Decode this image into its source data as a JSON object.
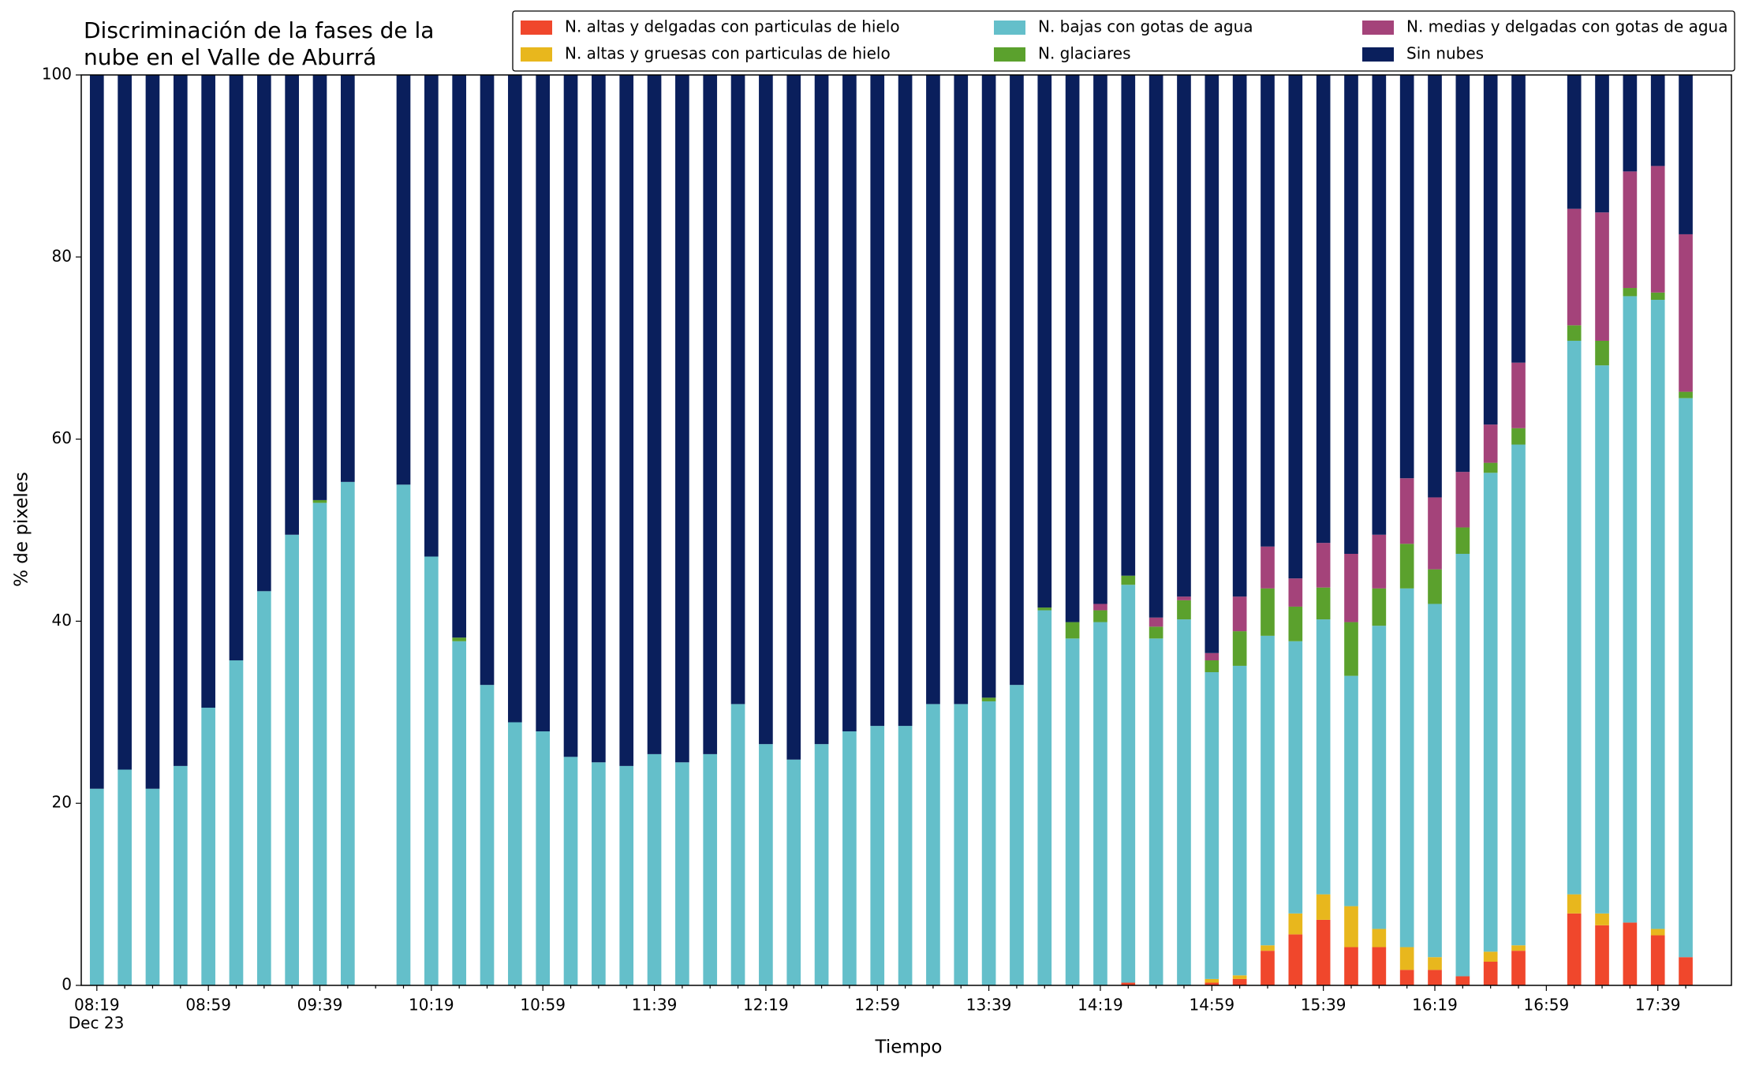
{
  "chart_data": {
    "type": "stacked_bar",
    "title": [
      "Discriminación de la fases de la",
      "nube en el Valle de Aburrá"
    ],
    "xlabel": "Tiempo",
    "ylabel": "% de pixeles",
    "date_label": "Dec 23",
    "categories": [
      "08:19",
      null,
      null,
      null,
      "08:59",
      null,
      null,
      null,
      "09:39",
      null,
      null,
      null,
      "10:19",
      null,
      null,
      null,
      "10:59",
      null,
      null,
      null,
      "11:39",
      null,
      null,
      null,
      "12:19",
      null,
      null,
      null,
      "12:59",
      null,
      null,
      null,
      "13:39",
      null,
      null,
      null,
      "14:19",
      null,
      null,
      null,
      "14:59",
      null,
      null,
      null,
      "15:39",
      null,
      null,
      null,
      "16:19",
      null,
      null,
      null,
      "16:59",
      null,
      null,
      null,
      "17:39",
      null
    ],
    "ylim": [
      0,
      100
    ],
    "yticks": [
      0,
      20,
      40,
      60,
      80,
      100
    ],
    "legend": "upper right",
    "series": [
      {
        "name": "N. altas y delgadas con particulas de hielo",
        "color": "#f0472c",
        "values": [
          0,
          0,
          0,
          0,
          0,
          0,
          0,
          0,
          0,
          0,
          null,
          0,
          0,
          0,
          0,
          0,
          0,
          0,
          0,
          0,
          0,
          0,
          0,
          0,
          0,
          0,
          0,
          0,
          0,
          0,
          0,
          0,
          0,
          0,
          0,
          0,
          0,
          0.3,
          0,
          0,
          0.3,
          0.7,
          3.8,
          5.6,
          7.2,
          4.2,
          4.2,
          1.7,
          1.7,
          1.0,
          2.6,
          3.8,
          null,
          7.9,
          6.6,
          6.9,
          5.5,
          3.1
        ]
      },
      {
        "name": "N. altas y gruesas con particulas de hielo",
        "color": "#e8b71d",
        "values": [
          0,
          0,
          0,
          0,
          0,
          0,
          0,
          0,
          0,
          0,
          null,
          0,
          0,
          0,
          0,
          0,
          0,
          0,
          0,
          0,
          0,
          0,
          0,
          0,
          0,
          0,
          0,
          0,
          0,
          0,
          0,
          0,
          0,
          0,
          0,
          0,
          0,
          0,
          0,
          0,
          0.4,
          0.4,
          0.6,
          2.3,
          2.8,
          4.5,
          2.0,
          2.5,
          1.4,
          0,
          1.1,
          0.6,
          null,
          2.1,
          1.3,
          0,
          0.7,
          0
        ]
      },
      {
        "name": "N. bajas con gotas de agua",
        "color": "#64bfca",
        "values": [
          21.6,
          23.7,
          21.6,
          24.1,
          30.5,
          35.7,
          43.3,
          49.5,
          53,
          55.3,
          null,
          55,
          47.1,
          37.8,
          33,
          28.9,
          27.9,
          25.1,
          24.5,
          24.1,
          25.4,
          24.5,
          25.4,
          30.9,
          26.5,
          24.8,
          26.5,
          27.9,
          28.5,
          28.5,
          30.9,
          30.9,
          31.2,
          33,
          41.2,
          38.1,
          39.9,
          43.7,
          38.1,
          40.2,
          33.7,
          34,
          34,
          29.9,
          30.2,
          25.3,
          33.3,
          39.4,
          38.8,
          46.4,
          52.6,
          55,
          null,
          60.8,
          60.2,
          68.8,
          69.1,
          61.4
        ]
      },
      {
        "name": "N. glaciares",
        "color": "#5ba12d",
        "values": [
          0,
          0,
          0,
          0,
          0,
          0,
          0,
          0,
          0.3,
          0,
          null,
          0,
          0,
          0.4,
          0,
          0,
          0,
          0,
          0,
          0,
          0,
          0,
          0,
          0,
          0,
          0,
          0,
          0,
          0,
          0,
          0,
          0,
          0.4,
          0,
          0.3,
          1.8,
          1.3,
          1,
          1.3,
          2.1,
          1.3,
          3.8,
          5.2,
          3.8,
          3.5,
          5.9,
          4.1,
          4.9,
          3.8,
          2.9,
          1.1,
          1.8,
          null,
          1.7,
          2.7,
          0.9,
          0.8,
          0.7
        ]
      },
      {
        "name": "N. medias y delgadas con gotas de agua",
        "color": "#a4437a",
        "values": [
          0,
          0,
          0,
          0,
          0,
          0,
          0,
          0,
          0,
          0,
          null,
          0,
          0,
          0,
          0,
          0,
          0,
          0,
          0,
          0,
          0,
          0,
          0,
          0,
          0,
          0,
          0,
          0,
          0,
          0,
          0,
          0,
          0,
          0,
          0,
          0,
          0.7,
          0,
          1,
          0.4,
          0.8,
          3.8,
          4.6,
          3.1,
          4.9,
          7.5,
          5.9,
          7.2,
          7.9,
          6.1,
          4.2,
          7.2,
          null,
          12.8,
          14.1,
          12.8,
          13.9,
          17.3
        ]
      },
      {
        "name": "Sin nubes",
        "color": "#0a1f5c",
        "values": [
          78.4,
          76.3,
          78.4,
          75.9,
          69.5,
          64.3,
          56.7,
          50.5,
          46.7,
          44.7,
          null,
          45,
          52.9,
          61.8,
          67,
          71.1,
          72.1,
          74.9,
          75.5,
          75.9,
          74.6,
          75.5,
          74.6,
          69.1,
          73.5,
          75.2,
          73.5,
          72.1,
          71.5,
          71.5,
          69.1,
          69.1,
          68.4,
          67,
          58.5,
          60.1,
          58.1,
          55,
          59.6,
          57.3,
          63.5,
          57.3,
          51.8,
          55.3,
          51.4,
          52.6,
          50.5,
          44.3,
          46.4,
          43.6,
          38.4,
          31.6,
          null,
          14.7,
          15.1,
          10.6,
          10,
          17.5
        ]
      }
    ]
  }
}
